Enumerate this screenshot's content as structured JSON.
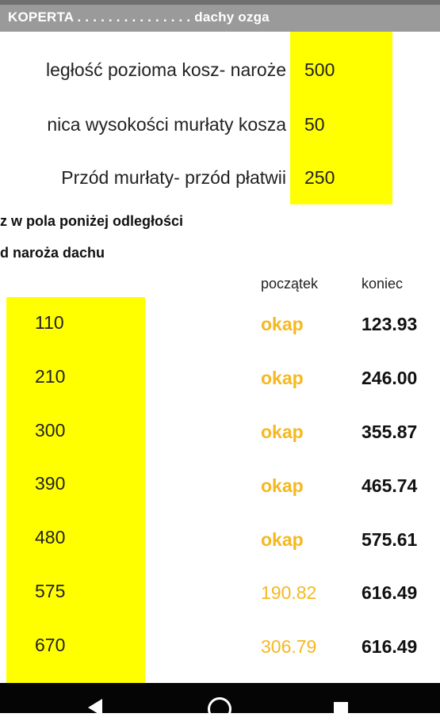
{
  "app": {
    "title": "KOPERTA . . . . . . . . . . . . . . . dachy ozga"
  },
  "params": [
    {
      "label": "ległość pozioma kosz- naroże",
      "value": "500"
    },
    {
      "label": "nica wysokości murłaty kosza",
      "value": "50"
    },
    {
      "label": "Przód murłaty- przód płatwii",
      "value": "250"
    }
  ],
  "instructions": {
    "line1": "z w pola poniżej odległości",
    "line2": "d naroża  dachu"
  },
  "columns": {
    "start": "początek",
    "end": "koniec"
  },
  "rows": [
    {
      "input": "110",
      "start": "okap",
      "end": "123.93"
    },
    {
      "input": "210",
      "start": "okap",
      "end": "246.00"
    },
    {
      "input": "300",
      "start": "okap",
      "end": "355.87"
    },
    {
      "input": "390",
      "start": "okap",
      "end": "465.74"
    },
    {
      "input": "480",
      "start": "okap",
      "end": "575.61"
    },
    {
      "input": "575",
      "start": "190.82",
      "end": "616.49"
    },
    {
      "input": "670",
      "start": "306.79",
      "end": "616.49"
    }
  ],
  "colors": {
    "highlight": "#ffff00",
    "start_text": "#f5b820",
    "title_bar": "#9a9a9a",
    "nav_bar": "#050505"
  },
  "nav": {
    "back_icon": "back-triangle-icon",
    "home_icon": "home-circle-icon",
    "recent_icon": "recent-square-icon"
  }
}
